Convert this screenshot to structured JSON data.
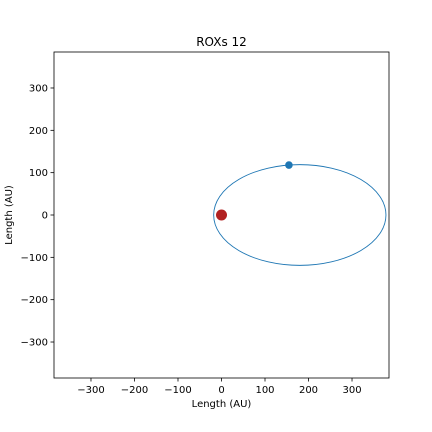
{
  "chart_data": {
    "type": "scatter",
    "title": "ROXs 12",
    "xlabel": "Length (AU)",
    "ylabel": "Length (AU)",
    "xlim": [
      -385,
      385
    ],
    "ylim": [
      -385,
      385
    ],
    "xticks": [
      -300,
      -200,
      -100,
      0,
      100,
      200,
      300
    ],
    "yticks": [
      -300,
      -200,
      -100,
      0,
      100,
      200,
      300
    ],
    "xtick_labels": [
      "−300",
      "−200",
      "−100",
      "0",
      "100",
      "200",
      "300"
    ],
    "ytick_labels": [
      "−300",
      "−200",
      "−100",
      "0",
      "100",
      "200",
      "300"
    ],
    "grid": false,
    "orbit": {
      "center": [
        180,
        0
      ],
      "semi_major": 198,
      "semi_minor": 119,
      "color": "#1f77b4"
    },
    "points": [
      {
        "role": "host-star",
        "x": 0,
        "y": 0,
        "color": "#b22222",
        "size": "large"
      },
      {
        "role": "companion",
        "x": 155,
        "y": 118,
        "color": "#1f77b4",
        "size": "small"
      }
    ]
  }
}
